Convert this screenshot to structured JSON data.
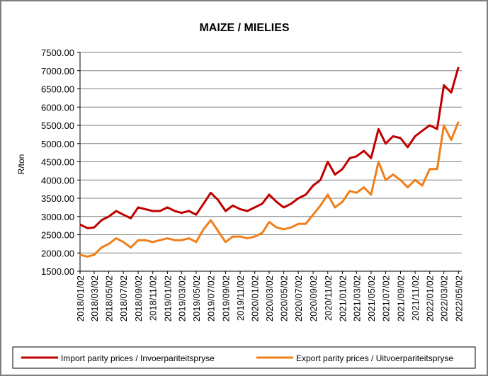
{
  "chart_data": {
    "type": "line",
    "title": "MAIZE / MIELIES",
    "y_label": "R/ton",
    "x": [
      "2018/01/02",
      "2018/02/02",
      "2018/03/02",
      "2018/04/02",
      "2018/05/02",
      "2018/06/02",
      "2018/07/02",
      "2018/08/02",
      "2018/09/02",
      "2018/10/02",
      "2018/11/02",
      "2018/12/02",
      "2019/01/02",
      "2019/02/02",
      "2019/03/02",
      "2019/04/02",
      "2019/05/02",
      "2019/06/02",
      "2019/07/02",
      "2019/08/02",
      "2019/09/02",
      "2019/10/02",
      "2019/11/02",
      "2019/12/02",
      "2020/01/02",
      "2020/02/02",
      "2020/03/02",
      "2020/04/02",
      "2020/05/02",
      "2020/06/02",
      "2020/07/02",
      "2020/08/02",
      "2020/09/02",
      "2020/10/02",
      "2020/11/02",
      "2020/12/02",
      "2021/01/02",
      "2021/02/02",
      "2021/03/02",
      "2021/04/02",
      "2021/05/02",
      "2021/06/02",
      "2021/07/02",
      "2021/08/02",
      "2021/09/02",
      "2021/10/02",
      "2021/11/02",
      "2021/12/02",
      "2022/01/02",
      "2022/02/02",
      "2022/03/02",
      "2022/04/02",
      "2022/05/02"
    ],
    "series": [
      {
        "name": "Import parity prices / Invoerpariteitspryse",
        "color": "#c00000",
        "values": [
          2780,
          2680,
          2700,
          2900,
          3000,
          3150,
          3050,
          2950,
          3250,
          3200,
          3150,
          3150,
          3250,
          3150,
          3100,
          3150,
          3050,
          3350,
          3650,
          3450,
          3150,
          3300,
          3200,
          3150,
          3250,
          3350,
          3600,
          3400,
          3250,
          3350,
          3500,
          3600,
          3850,
          4000,
          4500,
          4150,
          4300,
          4600,
          4650,
          4800,
          4600,
          5400,
          5000,
          5200,
          5150,
          4900,
          5200,
          5350,
          5500,
          5400,
          6600,
          6400,
          7100
        ]
      },
      {
        "name": "Export parity prices / Uitvoerpariteitspryse",
        "color": "#f07f1a",
        "values": [
          1950,
          1900,
          1950,
          2150,
          2250,
          2400,
          2300,
          2150,
          2350,
          2350,
          2300,
          2350,
          2400,
          2350,
          2350,
          2400,
          2300,
          2650,
          2900,
          2600,
          2300,
          2450,
          2450,
          2400,
          2450,
          2550,
          2850,
          2700,
          2650,
          2700,
          2800,
          2800,
          3050,
          3300,
          3600,
          3250,
          3400,
          3700,
          3650,
          3800,
          3600,
          4500,
          4000,
          4150,
          4000,
          3800,
          4000,
          3850,
          4300,
          4300,
          5500,
          5100,
          5600
        ]
      }
    ],
    "xlim": [
      "2018/01/02",
      "2022/05/16"
    ],
    "xticks": [
      "2018/01/02",
      "2018/03/02",
      "2018/05/02",
      "2018/07/02",
      "2018/09/02",
      "2018/11/02",
      "2019/01/02",
      "2019/03/02",
      "2019/05/02",
      "2019/07/02",
      "2019/09/02",
      "2019/11/02",
      "2020/01/02",
      "2020/03/02",
      "2020/05/02",
      "2020/07/02",
      "2020/09/02",
      "2020/11/02",
      "2021/01/02",
      "2021/03/02",
      "2021/05/02",
      "2021/07/02",
      "2021/09/02",
      "2021/11/02",
      "2022/01/02",
      "2022/03/02",
      "2022/05/02"
    ],
    "ylim": [
      1500,
      7500
    ],
    "yticks": [
      {
        "value": 1500,
        "label": "1500.00"
      },
      {
        "value": 2000,
        "label": "2000.00"
      },
      {
        "value": 2500,
        "label": "2500.00"
      },
      {
        "value": 3000,
        "label": "3000.00"
      },
      {
        "value": 3500,
        "label": "3500.00"
      },
      {
        "value": 4000,
        "label": "4000.00"
      },
      {
        "value": 4500,
        "label": "4500.00"
      },
      {
        "value": 5000,
        "label": "5000.00"
      },
      {
        "value": 5500,
        "label": "5500.00"
      },
      {
        "value": 6000,
        "label": "6000.00"
      },
      {
        "value": 6500,
        "label": "6500.00"
      },
      {
        "value": 7000,
        "label": "7000.00"
      },
      {
        "value": 7500,
        "label": "7500.00"
      }
    ],
    "grid": true,
    "legend": "bottom"
  }
}
